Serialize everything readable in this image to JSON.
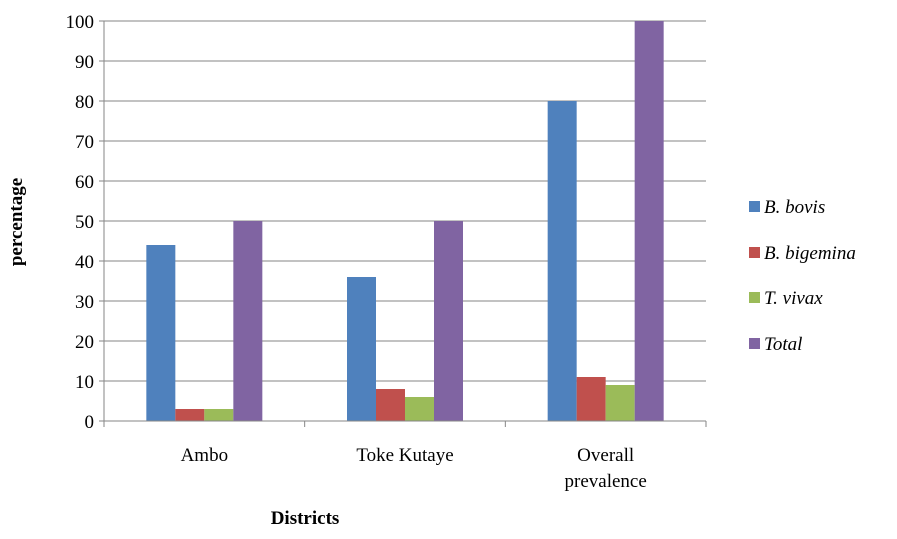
{
  "chart_data": {
    "type": "bar",
    "categories": [
      [
        "Ambo"
      ],
      [
        "Toke Kutaye"
      ],
      [
        "Overall",
        "prevalence"
      ]
    ],
    "series": [
      {
        "name": "B. bovis",
        "color": "#4F81BD",
        "values": [
          44,
          36,
          80
        ]
      },
      {
        "name": "B. bigemina",
        "color": "#C0504D",
        "values": [
          3,
          8,
          11
        ]
      },
      {
        "name": "T. vivax",
        "color": "#9BBB59",
        "values": [
          3,
          6,
          9
        ]
      },
      {
        "name": "Total",
        "color": "#8064A2",
        "values": [
          50,
          50,
          100
        ]
      }
    ],
    "title": "",
    "xlabel": "Districts",
    "ylabel": "percentage",
    "ylim": [
      0,
      100
    ],
    "yticks": [
      0,
      10,
      20,
      30,
      40,
      50,
      60,
      70,
      80,
      90,
      100
    ],
    "grid": true,
    "legend_position": "right"
  }
}
